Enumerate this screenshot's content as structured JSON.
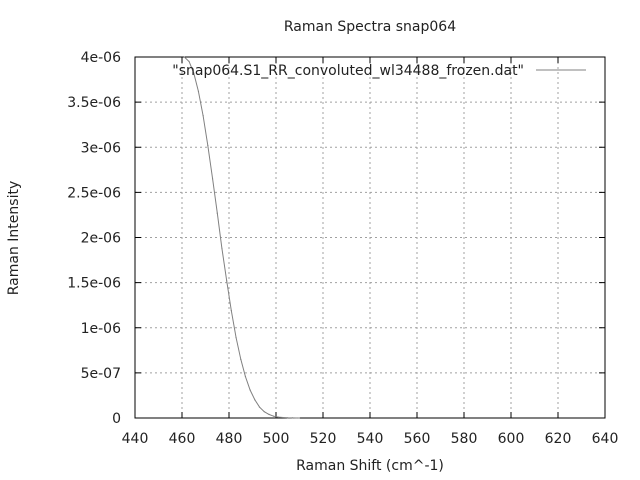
{
  "chart_data": {
    "type": "line",
    "title": "Raman Spectra snap064",
    "xlabel": "Raman Shift (cm^-1)",
    "ylabel": "Raman Intensity",
    "xlim": [
      440,
      640
    ],
    "ylim": [
      0,
      4e-06
    ],
    "x_ticks": [
      440,
      460,
      480,
      500,
      520,
      540,
      560,
      580,
      600,
      620,
      640
    ],
    "x_tick_labels": [
      "440",
      "460",
      "480",
      "500",
      "520",
      "540",
      "560",
      "580",
      "600",
      "620",
      "640"
    ],
    "y_ticks": [
      0,
      5e-07,
      1e-06,
      1.5e-06,
      2e-06,
      2.5e-06,
      3e-06,
      3.5e-06,
      4e-06
    ],
    "y_tick_labels": [
      "0",
      "5e-07",
      "1e-06",
      "1.5e-06",
      "2e-06",
      "2.5e-06",
      "3e-06",
      "3.5e-06",
      "4e-06"
    ],
    "grid": true,
    "legend_position": "top-right",
    "series": [
      {
        "name": "\"snap064.S1_RR_convoluted_wl34488_frozen.dat\"",
        "color": "#808080",
        "x": [
          461,
          463,
          465,
          467,
          469,
          471,
          473,
          475,
          477,
          479,
          481,
          483,
          485,
          487,
          489,
          491,
          493,
          495,
          497,
          499,
          501,
          503,
          505,
          507,
          509,
          510
        ],
        "y": [
          4e-06,
          3.95e-06,
          3.82e-06,
          3.62e-06,
          3.35e-06,
          3.02e-06,
          2.65e-06,
          2.27e-06,
          1.88e-06,
          1.52e-06,
          1.19e-06,
          8.9e-07,
          6.5e-07,
          4.6e-07,
          3.1e-07,
          2e-07,
          1.2e-07,
          7e-08,
          4e-08,
          2e-08,
          1e-08,
          5e-09,
          2e-09,
          1e-09,
          0.0,
          0.0
        ]
      }
    ]
  }
}
